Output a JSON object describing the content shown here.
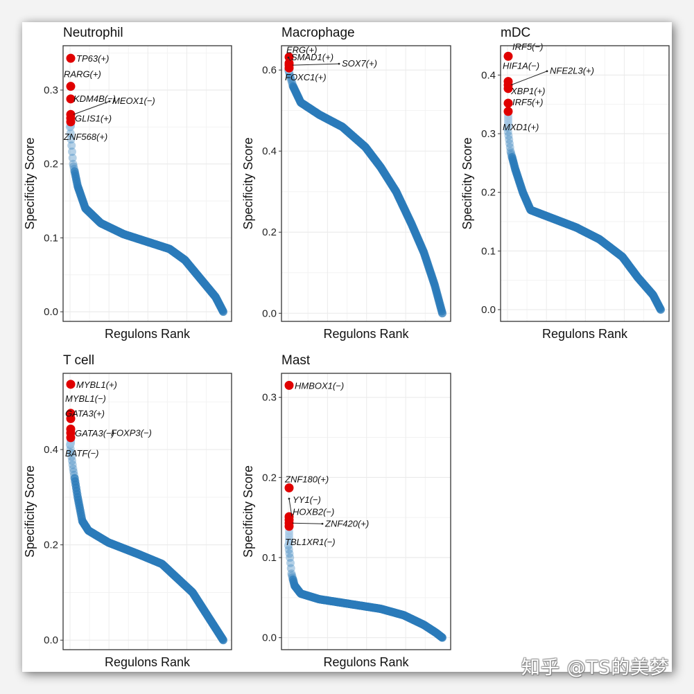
{
  "watermark": "知乎 @TS的美梦",
  "chart_data": [
    {
      "type": "scatter",
      "title": "Neutrophil",
      "xlabel": "Regulons Rank",
      "ylabel": "Specificity Score",
      "ylim": [
        -0.013,
        0.36
      ],
      "yticks": [
        0.0,
        0.1,
        0.2,
        0.3
      ],
      "ytick_labels": [
        "0.0",
        "0.1",
        "0.2",
        "0.3"
      ],
      "x_tick_labels": [],
      "grid": true,
      "n_regulons": 300,
      "curve": [
        [
          0,
          0.25
        ],
        [
          0.02,
          0.2
        ],
        [
          0.05,
          0.17
        ],
        [
          0.1,
          0.14
        ],
        [
          0.2,
          0.12
        ],
        [
          0.35,
          0.105
        ],
        [
          0.5,
          0.095
        ],
        [
          0.65,
          0.085
        ],
        [
          0.75,
          0.07
        ],
        [
          0.85,
          0.045
        ],
        [
          0.95,
          0.02
        ],
        [
          1.0,
          0.0
        ]
      ],
      "highlighted": [
        {
          "label": "TP63(+)",
          "value": 0.343
        },
        {
          "label": "RARG(+)",
          "value": 0.305
        },
        {
          "label": "KDM4B(−)",
          "value": 0.288
        },
        {
          "label": "MEOX1(−)",
          "value": 0.267
        },
        {
          "label": "GLIS1(+)",
          "value": 0.262
        },
        {
          "label": "ZNF568(+)",
          "value": 0.257
        }
      ]
    },
    {
      "type": "scatter",
      "title": "Macrophage",
      "xlabel": "Regulons Rank",
      "ylabel": "Specificity Score",
      "ylim": [
        -0.02,
        0.66
      ],
      "yticks": [
        0.0,
        0.2,
        0.4,
        0.6
      ],
      "ytick_labels": [
        "0.0",
        "0.2",
        "0.4",
        "0.6"
      ],
      "x_tick_labels": [],
      "grid": true,
      "n_regulons": 300,
      "curve": [
        [
          0,
          0.6
        ],
        [
          0.03,
          0.56
        ],
        [
          0.08,
          0.52
        ],
        [
          0.2,
          0.49
        ],
        [
          0.35,
          0.46
        ],
        [
          0.5,
          0.41
        ],
        [
          0.6,
          0.36
        ],
        [
          0.7,
          0.3
        ],
        [
          0.8,
          0.22
        ],
        [
          0.88,
          0.15
        ],
        [
          0.95,
          0.07
        ],
        [
          1.0,
          0.0
        ]
      ],
      "highlighted": [
        {
          "label": "ERG(+)",
          "value": 0.632
        },
        {
          "label": "SMAD1(+)",
          "value": 0.617
        },
        {
          "label": "SOX7(+)",
          "value": 0.612
        },
        {
          "label": "FOXC1(+)",
          "value": 0.605
        }
      ]
    },
    {
      "type": "scatter",
      "title": "mDC",
      "xlabel": "Regulons Rank",
      "ylabel": "Specificity Score",
      "ylim": [
        -0.02,
        0.45
      ],
      "yticks": [
        0.0,
        0.1,
        0.2,
        0.3,
        0.4
      ],
      "ytick_labels": [
        "0.0",
        "0.1",
        "0.2",
        "0.3",
        "0.4"
      ],
      "x_tick_labels": [],
      "grid": true,
      "n_regulons": 300,
      "curve": [
        [
          0,
          0.31
        ],
        [
          0.02,
          0.27
        ],
        [
          0.05,
          0.24
        ],
        [
          0.1,
          0.2
        ],
        [
          0.15,
          0.17
        ],
        [
          0.3,
          0.155
        ],
        [
          0.45,
          0.14
        ],
        [
          0.6,
          0.12
        ],
        [
          0.75,
          0.09
        ],
        [
          0.85,
          0.055
        ],
        [
          0.95,
          0.025
        ],
        [
          1.0,
          0.0
        ]
      ],
      "highlighted": [
        {
          "label": "IRF5(−)",
          "value": 0.432
        },
        {
          "label": "HIF1A(−)",
          "value": 0.389
        },
        {
          "label": "NFE2L3(+)",
          "value": 0.383
        },
        {
          "label": "XBP1(+)",
          "value": 0.377
        },
        {
          "label": "IRF5(+)",
          "value": 0.352
        },
        {
          "label": "MXD1(+)",
          "value": 0.338
        }
      ]
    },
    {
      "type": "scatter",
      "title": "T cell",
      "xlabel": "Regulons Rank",
      "ylabel": "Specificity Score",
      "ylim": [
        -0.02,
        0.56
      ],
      "yticks": [
        0.0,
        0.2,
        0.4
      ],
      "ytick_labels": [
        "0.0",
        "0.2",
        "0.4"
      ],
      "x_tick_labels": [],
      "grid": true,
      "n_regulons": 300,
      "curve": [
        [
          0,
          0.41
        ],
        [
          0.02,
          0.36
        ],
        [
          0.05,
          0.3
        ],
        [
          0.08,
          0.25
        ],
        [
          0.12,
          0.23
        ],
        [
          0.25,
          0.205
        ],
        [
          0.45,
          0.18
        ],
        [
          0.6,
          0.16
        ],
        [
          0.7,
          0.13
        ],
        [
          0.8,
          0.1
        ],
        [
          0.9,
          0.05
        ],
        [
          1.0,
          0.0
        ]
      ],
      "highlighted": [
        {
          "label": "MYBL1(+)",
          "value": 0.537
        },
        {
          "label": "MYBL1(−)",
          "value": 0.476
        },
        {
          "label": "GATA3(+)",
          "value": 0.465
        },
        {
          "label": "FOXP3(−)",
          "value": 0.443
        },
        {
          "label": "GATA3(−)",
          "value": 0.435
        },
        {
          "label": "BATF(−)",
          "value": 0.425
        }
      ]
    },
    {
      "type": "scatter",
      "title": "Mast",
      "xlabel": "Regulons Rank",
      "ylabel": "Specificity Score",
      "ylim": [
        -0.015,
        0.33
      ],
      "yticks": [
        0.0,
        0.1,
        0.2,
        0.3
      ],
      "ytick_labels": [
        "0.0",
        "0.1",
        "0.2",
        "0.3"
      ],
      "x_tick_labels": [],
      "grid": true,
      "n_regulons": 300,
      "curve": [
        [
          0,
          0.115
        ],
        [
          0.01,
          0.1
        ],
        [
          0.02,
          0.08
        ],
        [
          0.04,
          0.065
        ],
        [
          0.08,
          0.055
        ],
        [
          0.2,
          0.048
        ],
        [
          0.4,
          0.042
        ],
        [
          0.6,
          0.036
        ],
        [
          0.75,
          0.028
        ],
        [
          0.88,
          0.016
        ],
        [
          0.96,
          0.006
        ],
        [
          1.0,
          0.0
        ]
      ],
      "highlighted": [
        {
          "label": "HMBOX1(−)",
          "value": 0.315
        },
        {
          "label": "ZNF180(+)",
          "value": 0.187
        },
        {
          "label": "YY1(−)",
          "value": 0.151
        },
        {
          "label": "HOXB2(−)",
          "value": 0.147
        },
        {
          "label": "ZNF420(+)",
          "value": 0.143
        },
        {
          "label": "TBL1XR1(−)",
          "value": 0.139
        }
      ]
    }
  ]
}
